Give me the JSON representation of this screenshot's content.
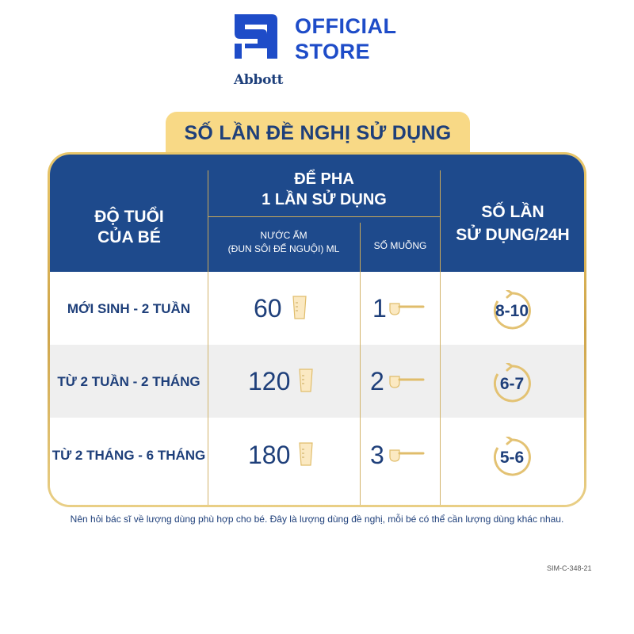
{
  "header": {
    "logo_word": "Abbott",
    "store_line1": "OFFICIAL",
    "store_line2": "STORE"
  },
  "title": "SỐ LẦN ĐỀ NGHỊ SỬ DỤNG",
  "table": {
    "col_age_line1": "ĐỘ TUỔI",
    "col_age_line2": "CỦA BÉ",
    "col_mix_line1": "ĐỂ PHA",
    "col_mix_line2": "1 LẦN SỬ DỤNG",
    "col_water_line1": "NƯỚC ẤM",
    "col_water_line2": "(ĐUN SÔI ĐỂ NGUỘI) ML",
    "col_scoop": "SỐ MUỖNG",
    "col_times_line1": "SỐ LẦN",
    "col_times_line2": "SỬ DỤNG/24H",
    "rows": [
      {
        "age": "MỚI SINH - 2 TUẦN",
        "water": "60",
        "scoops": "1",
        "times": "8-10"
      },
      {
        "age": "TỪ 2 TUẦN - 2 THÁNG",
        "water": "120",
        "scoops": "2",
        "times": "6-7"
      },
      {
        "age": "TỪ 2 THÁNG - 6 THÁNG",
        "water": "180",
        "scoops": "3",
        "times": "5-6"
      }
    ]
  },
  "note": "Nên hỏi bác sĩ về lượng dùng phù hợp cho bé. Đây là lượng dùng đề nghị, mỗi bé có thể cần lượng dùng khác nhau.",
  "code": "SIM-C-348-21",
  "colors": {
    "navy": "#1e4a8c",
    "gold": "#f8d986",
    "text": "#1e3f7a"
  },
  "icons": [
    "abbott-logo-icon",
    "cup-icon",
    "scoop-icon",
    "cycle-arrow-icon"
  ]
}
